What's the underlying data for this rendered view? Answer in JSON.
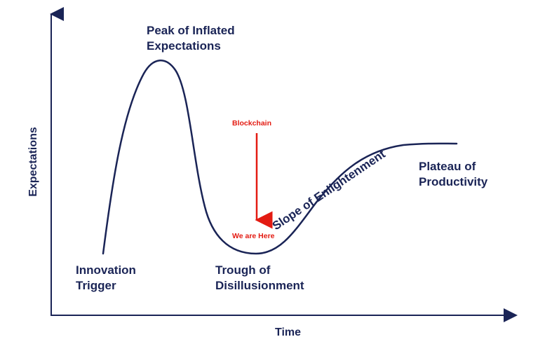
{
  "axes": {
    "x_title": "Time",
    "y_title": "Expectations"
  },
  "phases": {
    "innovation_trigger": [
      "Innovation",
      "Trigger"
    ],
    "peak": [
      "Peak of Inflated",
      "Expectations"
    ],
    "trough": [
      "Trough of",
      "Disillusionment"
    ],
    "slope": "Slope of Enlightenment",
    "plateau": [
      "Plateau of",
      "Productivity"
    ]
  },
  "marker": {
    "label": "Blockchain",
    "position_note": "We are Here"
  },
  "colors": {
    "curve": "#1a2456",
    "axis": "#1a2456",
    "marker": "#e31b12"
  }
}
